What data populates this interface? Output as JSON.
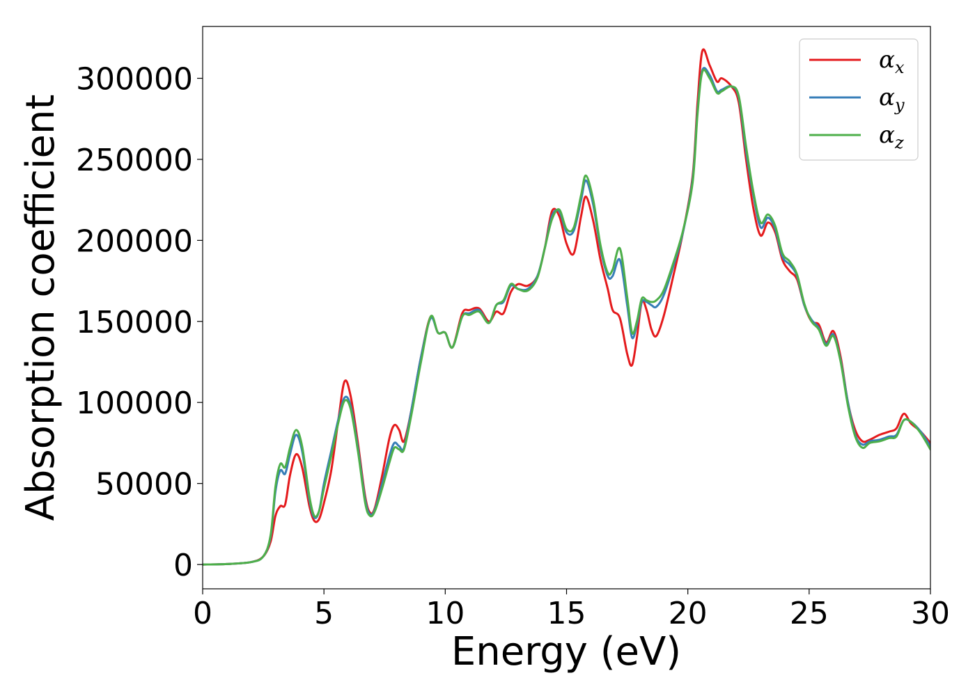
{
  "chart_data": {
    "type": "line",
    "title": "",
    "xlabel": "Energy (eV)",
    "ylabel": "Absorption coefficient",
    "xlim": [
      0,
      30
    ],
    "ylim": [
      -15000,
      332000
    ],
    "xticks": [
      "0",
      "5",
      "10",
      "15",
      "20",
      "25",
      "30"
    ],
    "yticks": [
      "0",
      "50000",
      "100000",
      "150000",
      "200000",
      "250000",
      "300000"
    ],
    "grid": false,
    "legend": "top-right",
    "series": [
      {
        "name": "α",
        "subscript": "x",
        "color": "#e41a1c",
        "points": [
          [
            0,
            0
          ],
          [
            1,
            300
          ],
          [
            2,
            1500
          ],
          [
            2.5,
            5000
          ],
          [
            2.8,
            14000
          ],
          [
            3.0,
            30000
          ],
          [
            3.2,
            36000
          ],
          [
            3.4,
            37000
          ],
          [
            3.6,
            55000
          ],
          [
            3.85,
            68000
          ],
          [
            4.1,
            60000
          ],
          [
            4.4,
            36000
          ],
          [
            4.6,
            27000
          ],
          [
            4.8,
            28000
          ],
          [
            5.0,
            38000
          ],
          [
            5.3,
            58000
          ],
          [
            5.6,
            90000
          ],
          [
            5.85,
            113000
          ],
          [
            6.1,
            104000
          ],
          [
            6.4,
            75000
          ],
          [
            6.7,
            42000
          ],
          [
            6.9,
            32000
          ],
          [
            7.1,
            35000
          ],
          [
            7.4,
            55000
          ],
          [
            7.7,
            78000
          ],
          [
            7.9,
            86000
          ],
          [
            8.1,
            83000
          ],
          [
            8.3,
            76000
          ],
          [
            8.6,
            95000
          ],
          [
            9.0,
            128000
          ],
          [
            9.4,
            153000
          ],
          [
            9.7,
            143000
          ],
          [
            10.0,
            143000
          ],
          [
            10.3,
            134000
          ],
          [
            10.7,
            155000
          ],
          [
            11.0,
            157000
          ],
          [
            11.4,
            158000
          ],
          [
            11.8,
            150000
          ],
          [
            12.1,
            156000
          ],
          [
            12.4,
            155000
          ],
          [
            12.7,
            168000
          ],
          [
            13.0,
            173000
          ],
          [
            13.4,
            172000
          ],
          [
            13.8,
            178000
          ],
          [
            14.1,
            195000
          ],
          [
            14.4,
            218000
          ],
          [
            14.7,
            215000
          ],
          [
            15.0,
            198000
          ],
          [
            15.3,
            192000
          ],
          [
            15.6,
            215000
          ],
          [
            15.8,
            227000
          ],
          [
            16.1,
            212000
          ],
          [
            16.4,
            188000
          ],
          [
            16.7,
            170000
          ],
          [
            16.9,
            157000
          ],
          [
            17.2,
            152000
          ],
          [
            17.5,
            130000
          ],
          [
            17.7,
            123000
          ],
          [
            17.9,
            140000
          ],
          [
            18.1,
            162000
          ],
          [
            18.3,
            157000
          ],
          [
            18.5,
            145000
          ],
          [
            18.7,
            141000
          ],
          [
            19.0,
            153000
          ],
          [
            19.4,
            178000
          ],
          [
            19.8,
            205000
          ],
          [
            20.2,
            240000
          ],
          [
            20.4,
            285000
          ],
          [
            20.6,
            317000
          ],
          [
            20.9,
            308000
          ],
          [
            21.2,
            298000
          ],
          [
            21.4,
            300000
          ],
          [
            21.8,
            295000
          ],
          [
            22.1,
            285000
          ],
          [
            22.4,
            250000
          ],
          [
            22.7,
            220000
          ],
          [
            23.0,
            203000
          ],
          [
            23.3,
            211000
          ],
          [
            23.6,
            205000
          ],
          [
            23.9,
            188000
          ],
          [
            24.2,
            181000
          ],
          [
            24.5,
            176000
          ],
          [
            24.8,
            160000
          ],
          [
            25.1,
            150000
          ],
          [
            25.4,
            148000
          ],
          [
            25.7,
            137000
          ],
          [
            26.0,
            144000
          ],
          [
            26.3,
            128000
          ],
          [
            26.6,
            100000
          ],
          [
            26.9,
            83000
          ],
          [
            27.2,
            76000
          ],
          [
            27.5,
            77000
          ],
          [
            27.9,
            80000
          ],
          [
            28.3,
            82000
          ],
          [
            28.6,
            84000
          ],
          [
            28.9,
            93000
          ],
          [
            29.2,
            87000
          ],
          [
            29.6,
            82000
          ],
          [
            30,
            75000
          ]
        ]
      },
      {
        "name": "α",
        "subscript": "y",
        "color": "#377eb8",
        "points": [
          [
            0,
            0
          ],
          [
            1,
            300
          ],
          [
            2,
            1500
          ],
          [
            2.5,
            5000
          ],
          [
            2.8,
            17000
          ],
          [
            3.0,
            45000
          ],
          [
            3.2,
            58000
          ],
          [
            3.4,
            56000
          ],
          [
            3.6,
            68000
          ],
          [
            3.85,
            80000
          ],
          [
            4.1,
            70000
          ],
          [
            4.4,
            40000
          ],
          [
            4.6,
            29000
          ],
          [
            4.8,
            33000
          ],
          [
            5.0,
            50000
          ],
          [
            5.3,
            70000
          ],
          [
            5.6,
            90000
          ],
          [
            5.85,
            103000
          ],
          [
            6.1,
            98000
          ],
          [
            6.4,
            72000
          ],
          [
            6.7,
            40000
          ],
          [
            6.9,
            31000
          ],
          [
            7.1,
            34000
          ],
          [
            7.4,
            50000
          ],
          [
            7.7,
            67000
          ],
          [
            7.9,
            75000
          ],
          [
            8.1,
            73000
          ],
          [
            8.3,
            72000
          ],
          [
            8.6,
            95000
          ],
          [
            9.0,
            128000
          ],
          [
            9.4,
            152000
          ],
          [
            9.7,
            143000
          ],
          [
            10.0,
            143000
          ],
          [
            10.3,
            134000
          ],
          [
            10.7,
            153000
          ],
          [
            11.0,
            155000
          ],
          [
            11.4,
            157000
          ],
          [
            11.8,
            149000
          ],
          [
            12.1,
            160000
          ],
          [
            12.4,
            162000
          ],
          [
            12.7,
            172000
          ],
          [
            13.0,
            170000
          ],
          [
            13.4,
            170000
          ],
          [
            13.8,
            178000
          ],
          [
            14.1,
            195000
          ],
          [
            14.4,
            215000
          ],
          [
            14.7,
            218000
          ],
          [
            15.0,
            205000
          ],
          [
            15.3,
            206000
          ],
          [
            15.6,
            225000
          ],
          [
            15.8,
            237000
          ],
          [
            16.1,
            222000
          ],
          [
            16.4,
            195000
          ],
          [
            16.7,
            178000
          ],
          [
            16.9,
            178000
          ],
          [
            17.2,
            188000
          ],
          [
            17.5,
            160000
          ],
          [
            17.7,
            140000
          ],
          [
            17.9,
            148000
          ],
          [
            18.1,
            162000
          ],
          [
            18.3,
            162000
          ],
          [
            18.5,
            160000
          ],
          [
            18.7,
            159000
          ],
          [
            19.0,
            166000
          ],
          [
            19.4,
            184000
          ],
          [
            19.8,
            205000
          ],
          [
            20.2,
            238000
          ],
          [
            20.4,
            280000
          ],
          [
            20.6,
            305000
          ],
          [
            20.9,
            302000
          ],
          [
            21.2,
            292000
          ],
          [
            21.4,
            293000
          ],
          [
            21.8,
            295000
          ],
          [
            22.1,
            288000
          ],
          [
            22.4,
            255000
          ],
          [
            22.7,
            228000
          ],
          [
            23.0,
            208000
          ],
          [
            23.3,
            214000
          ],
          [
            23.6,
            207000
          ],
          [
            23.9,
            190000
          ],
          [
            24.2,
            185000
          ],
          [
            24.5,
            178000
          ],
          [
            24.8,
            160000
          ],
          [
            25.1,
            151000
          ],
          [
            25.4,
            146000
          ],
          [
            25.7,
            136000
          ],
          [
            26.0,
            142000
          ],
          [
            26.3,
            126000
          ],
          [
            26.6,
            100000
          ],
          [
            26.9,
            80000
          ],
          [
            27.2,
            74000
          ],
          [
            27.5,
            76000
          ],
          [
            27.9,
            77000
          ],
          [
            28.3,
            79000
          ],
          [
            28.6,
            80000
          ],
          [
            28.9,
            89000
          ],
          [
            29.2,
            88000
          ],
          [
            29.6,
            82000
          ],
          [
            30,
            73000
          ]
        ]
      },
      {
        "name": "α",
        "subscript": "z",
        "color": "#4daf4a",
        "points": [
          [
            0,
            0
          ],
          [
            1,
            300
          ],
          [
            2,
            1500
          ],
          [
            2.5,
            5000
          ],
          [
            2.8,
            18000
          ],
          [
            3.0,
            48000
          ],
          [
            3.2,
            62000
          ],
          [
            3.4,
            60000
          ],
          [
            3.6,
            72000
          ],
          [
            3.85,
            83000
          ],
          [
            4.1,
            73000
          ],
          [
            4.4,
            42000
          ],
          [
            4.6,
            30000
          ],
          [
            4.8,
            33000
          ],
          [
            5.0,
            47000
          ],
          [
            5.3,
            67000
          ],
          [
            5.6,
            88000
          ],
          [
            5.85,
            101000
          ],
          [
            6.1,
            96000
          ],
          [
            6.4,
            70000
          ],
          [
            6.7,
            38000
          ],
          [
            6.9,
            30000
          ],
          [
            7.1,
            33000
          ],
          [
            7.4,
            47000
          ],
          [
            7.7,
            63000
          ],
          [
            7.9,
            72000
          ],
          [
            8.1,
            71000
          ],
          [
            8.3,
            71000
          ],
          [
            8.6,
            92000
          ],
          [
            9.0,
            125000
          ],
          [
            9.4,
            153000
          ],
          [
            9.7,
            143000
          ],
          [
            10.0,
            143000
          ],
          [
            10.3,
            134000
          ],
          [
            10.7,
            153000
          ],
          [
            11.0,
            154000
          ],
          [
            11.4,
            156000
          ],
          [
            11.8,
            149000
          ],
          [
            12.1,
            160000
          ],
          [
            12.4,
            163000
          ],
          [
            12.7,
            173000
          ],
          [
            13.0,
            170000
          ],
          [
            13.4,
            169000
          ],
          [
            13.8,
            177000
          ],
          [
            14.1,
            195000
          ],
          [
            14.4,
            213000
          ],
          [
            14.7,
            219000
          ],
          [
            15.0,
            207000
          ],
          [
            15.3,
            208000
          ],
          [
            15.6,
            228000
          ],
          [
            15.8,
            240000
          ],
          [
            16.1,
            225000
          ],
          [
            16.4,
            197000
          ],
          [
            16.7,
            180000
          ],
          [
            16.9,
            182000
          ],
          [
            17.2,
            195000
          ],
          [
            17.5,
            165000
          ],
          [
            17.7,
            143000
          ],
          [
            17.9,
            150000
          ],
          [
            18.1,
            164000
          ],
          [
            18.3,
            163000
          ],
          [
            18.5,
            162000
          ],
          [
            18.7,
            163000
          ],
          [
            19.0,
            169000
          ],
          [
            19.4,
            186000
          ],
          [
            19.8,
            206000
          ],
          [
            20.2,
            236000
          ],
          [
            20.4,
            278000
          ],
          [
            20.6,
            304000
          ],
          [
            20.9,
            300000
          ],
          [
            21.2,
            291000
          ],
          [
            21.4,
            292000
          ],
          [
            21.8,
            295000
          ],
          [
            22.1,
            289000
          ],
          [
            22.4,
            258000
          ],
          [
            22.7,
            230000
          ],
          [
            23.0,
            211000
          ],
          [
            23.3,
            216000
          ],
          [
            23.6,
            209000
          ],
          [
            23.9,
            192000
          ],
          [
            24.2,
            187000
          ],
          [
            24.5,
            179000
          ],
          [
            24.8,
            161000
          ],
          [
            25.1,
            150000
          ],
          [
            25.4,
            145000
          ],
          [
            25.7,
            135000
          ],
          [
            26.0,
            141000
          ],
          [
            26.3,
            125000
          ],
          [
            26.6,
            98000
          ],
          [
            26.9,
            79000
          ],
          [
            27.2,
            72000
          ],
          [
            27.5,
            75000
          ],
          [
            27.9,
            76000
          ],
          [
            28.3,
            78000
          ],
          [
            28.6,
            79000
          ],
          [
            28.9,
            89000
          ],
          [
            29.2,
            88000
          ],
          [
            29.6,
            81000
          ],
          [
            30,
            71000
          ]
        ]
      }
    ]
  }
}
